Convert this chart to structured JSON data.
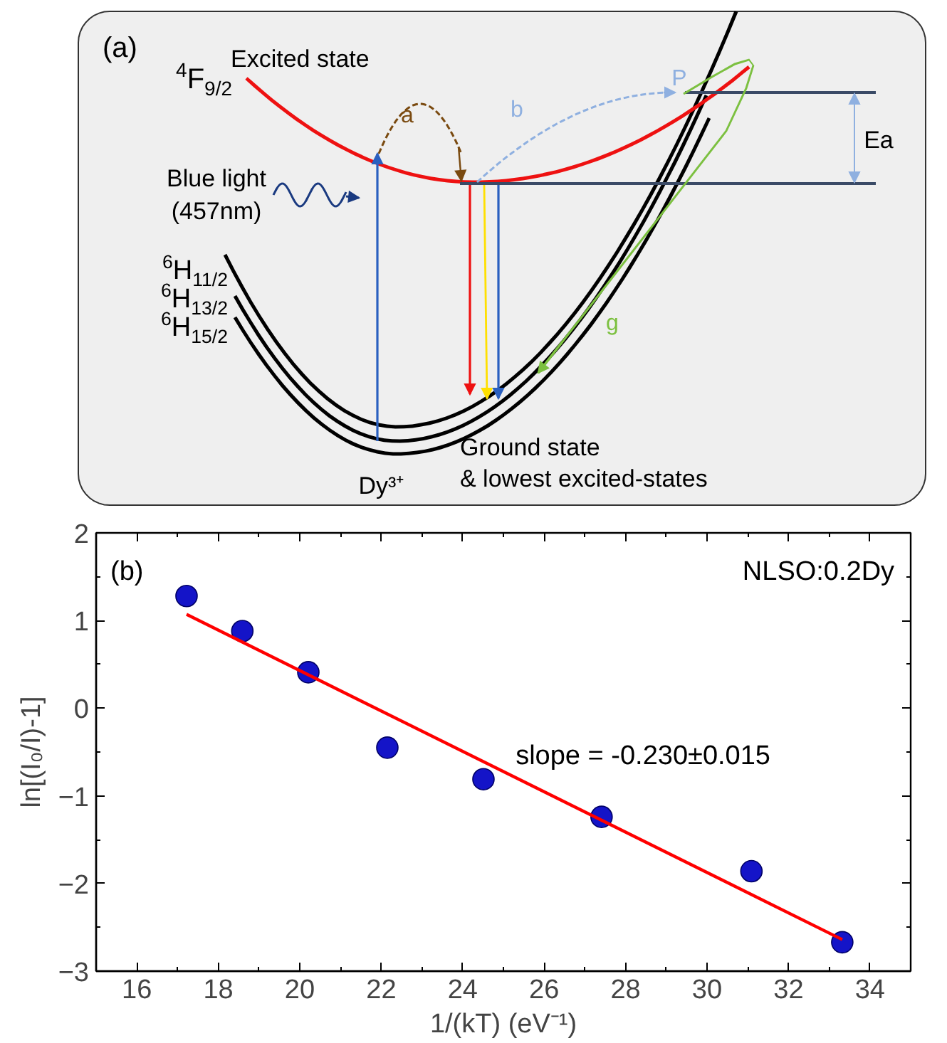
{
  "chart_data": [
    {
      "type": "other",
      "annotations": [
        "(a)",
        "$^{4}$F$_{9/2}$",
        "Excited state",
        "a",
        "b",
        "P",
        "Ea",
        "Blue light",
        "(457nm)",
        "$^{6}$H$_{11/2}$",
        "$^{6}$H$_{13/2}$",
        "$^{6}$H$_{15/2}$",
        "g",
        "Dy³⁺",
        "Ground state",
        "& lowest excited-states"
      ]
    },
    {
      "type": "scatter",
      "xlabel": "1/(kT) (eV⁻¹)",
      "ylabel": "ln[(I₀/I)-1]",
      "annotations": [
        "(b)",
        "NLSO:0.2Dy",
        "slope = -0.230±0.015"
      ],
      "series": [
        {
          "color": "#1414c8",
          "marker": "circle",
          "x": [
            17.22,
            18.59,
            20.21,
            22.15,
            24.51,
            27.41,
            31.09,
            33.32
          ],
          "values": [
            1.28,
            0.88,
            0.41,
            -0.45,
            -0.81,
            -1.24,
            -1.86,
            -2.67
          ]
        },
        {
          "type": "line",
          "color": "#ff0000",
          "x": [
            17.22,
            33.32
          ],
          "values": [
            1.07,
            -2.64
          ]
        }
      ],
      "xlim": [
        15,
        35
      ],
      "ylim": [
        -3,
        2
      ],
      "xticks": [
        16,
        18,
        20,
        22,
        24,
        26,
        28,
        30,
        32,
        34
      ],
      "yticks": [
        -3,
        -2,
        -1,
        0,
        1,
        2
      ],
      "grid": false,
      "line_style": "solid"
    }
  ]
}
